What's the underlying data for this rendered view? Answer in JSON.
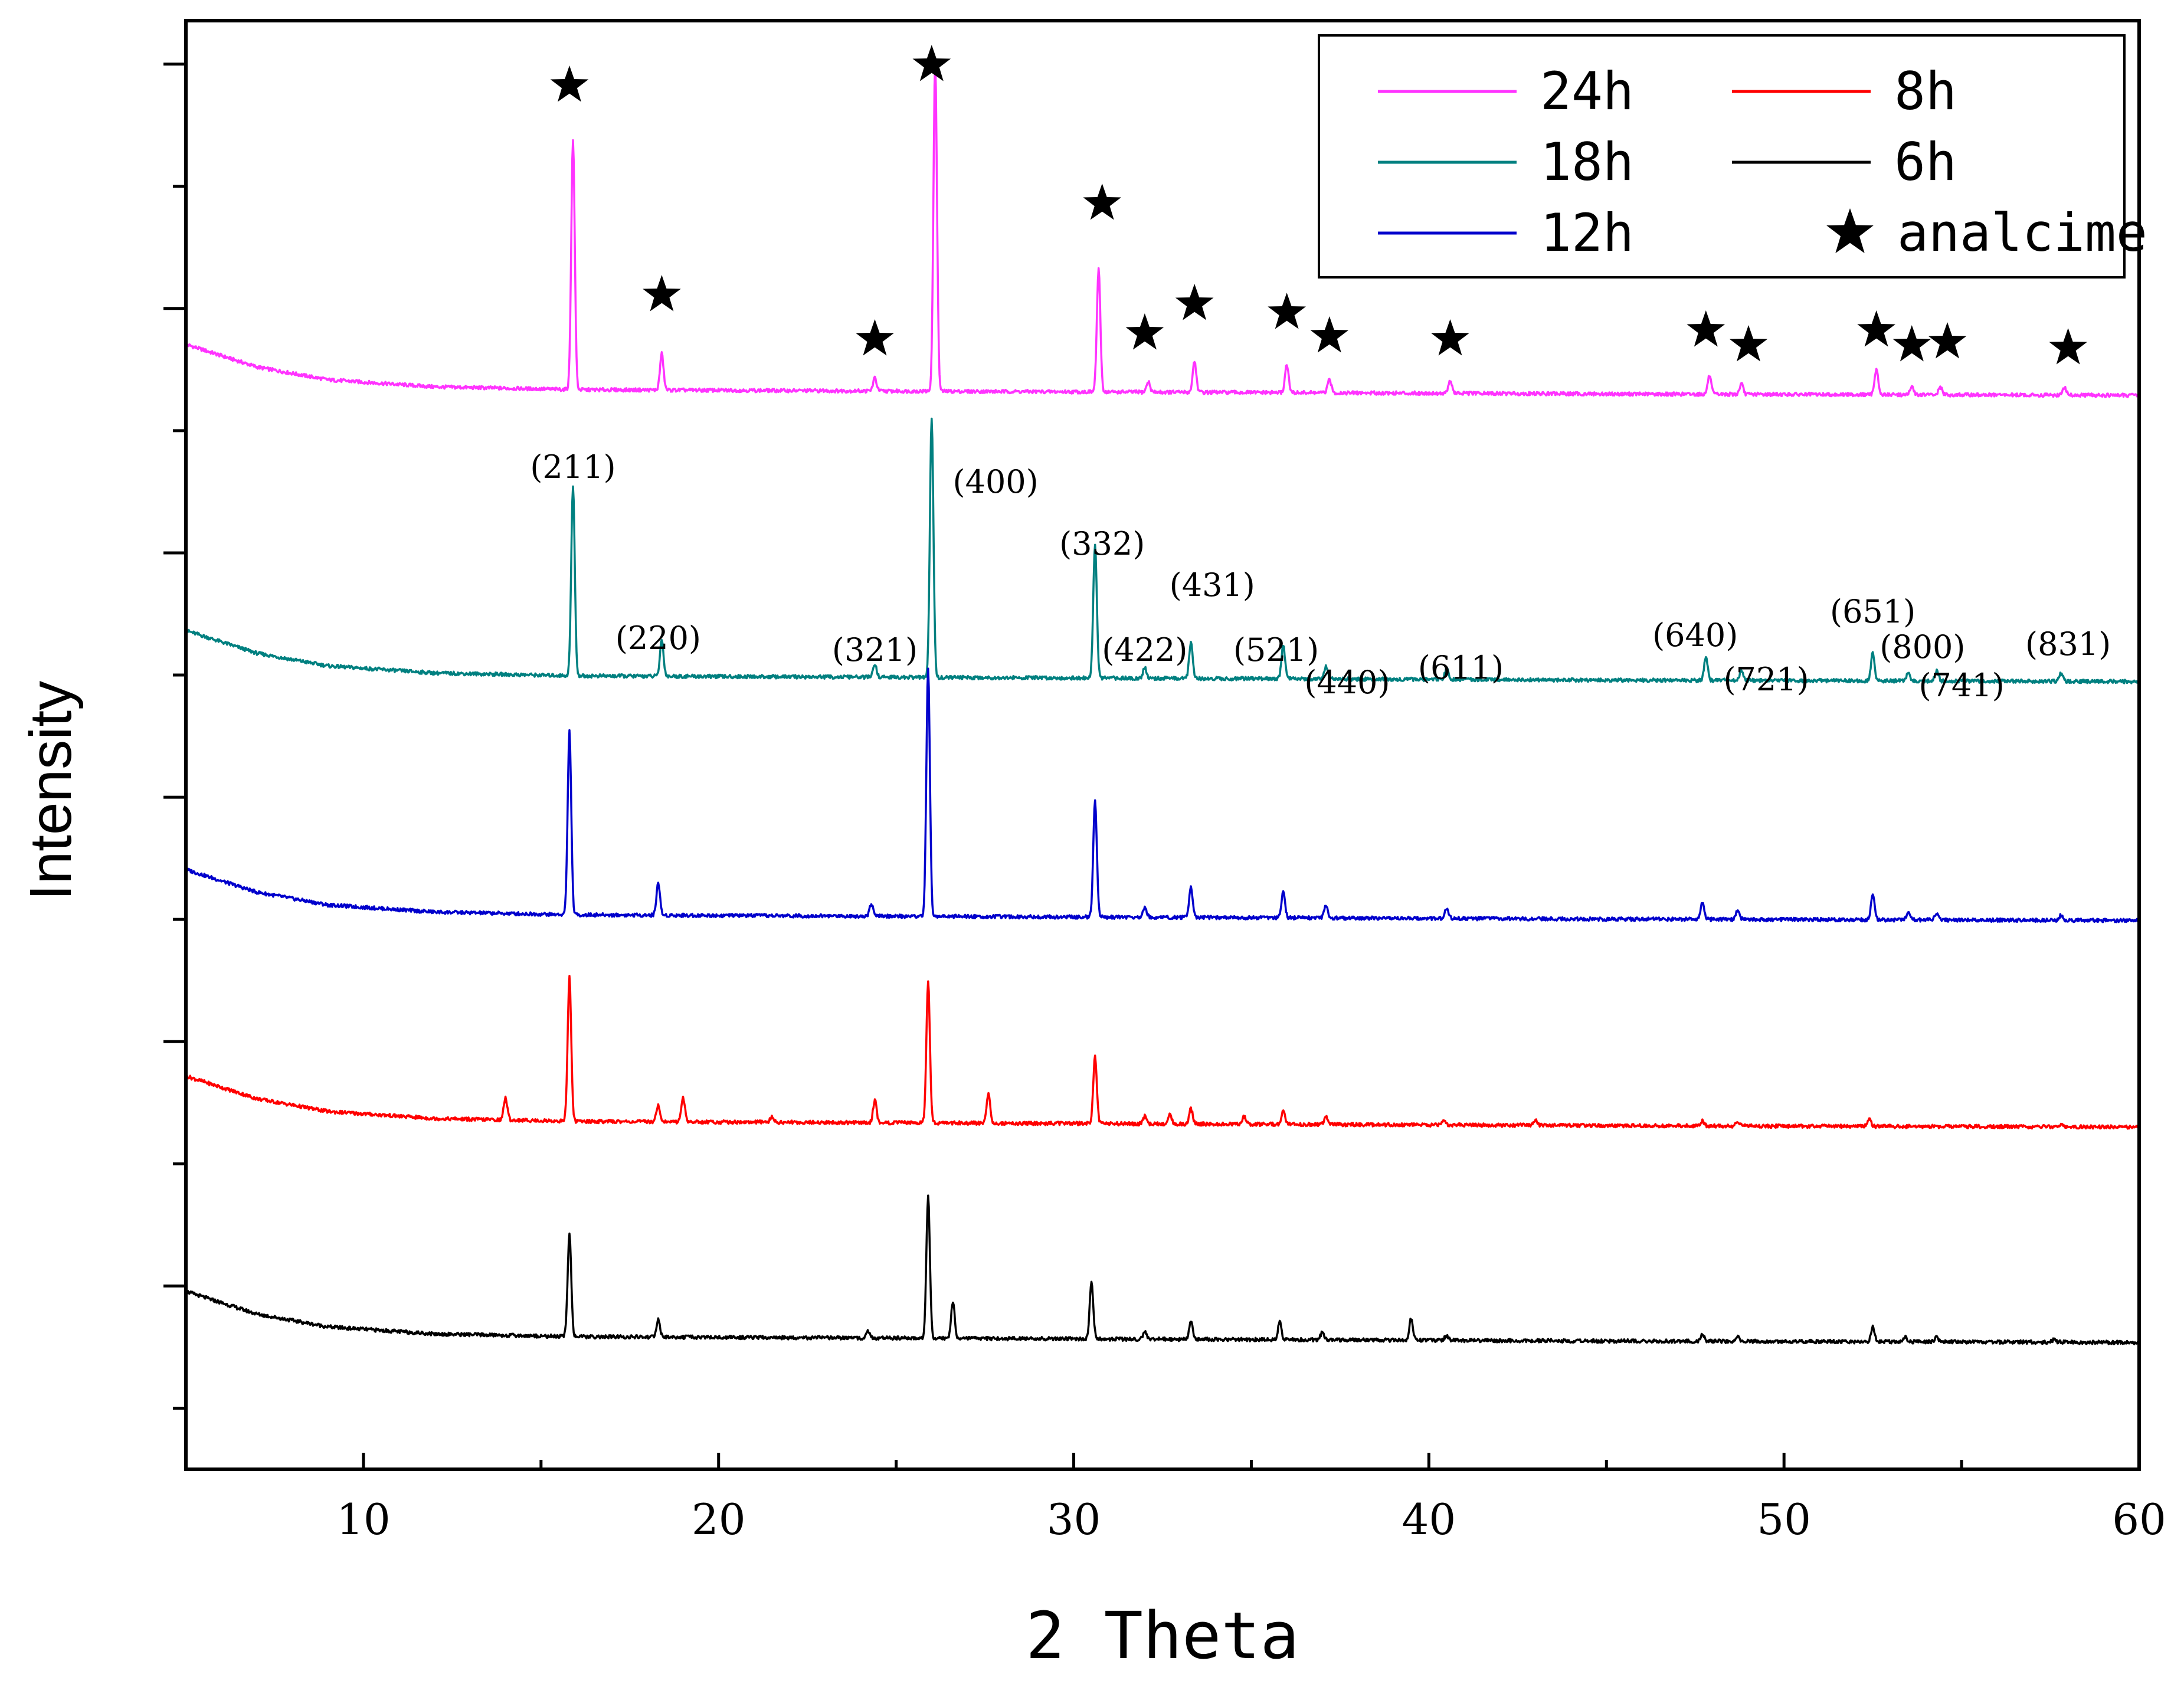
{
  "chart_data": {
    "type": "line",
    "title": "",
    "xlabel": "2 Theta",
    "ylabel": "Intensity",
    "xlim": [
      5,
      60
    ],
    "x_ticks": [
      10,
      20,
      30,
      40,
      50,
      60
    ],
    "x_tick_labels": [
      "10",
      "20",
      "30",
      "40",
      "50",
      "60"
    ],
    "y_ticks_count": 12,
    "grid": false,
    "legend_position": "top-right",
    "legend": [
      {
        "label": "24h",
        "color": "#ff33ff",
        "type": "line"
      },
      {
        "label": "8h",
        "color": "#ff0000",
        "type": "line"
      },
      {
        "label": "18h",
        "color": "#008080",
        "type": "line"
      },
      {
        "label": "6h",
        "color": "#000000",
        "type": "line"
      },
      {
        "label": "12h",
        "color": "#0000cc",
        "type": "line"
      },
      {
        "label": "analcime",
        "type": "star",
        "color": "#000000"
      }
    ],
    "series": [
      {
        "name": "24h",
        "color": "#ff33ff",
        "baseline": [
          [
            5,
            1.0
          ],
          [
            7,
            0.92
          ],
          [
            9,
            0.875
          ],
          [
            12,
            0.85
          ],
          [
            16,
            0.84
          ],
          [
            25,
            0.835
          ],
          [
            35,
            0.83
          ],
          [
            45,
            0.825
          ],
          [
            60,
            0.82
          ]
        ],
        "peaks": [
          [
            14.0,
            0.0
          ],
          [
            15.9,
            0.96
          ],
          [
            18.4,
            0.14
          ],
          [
            24.4,
            0.05
          ],
          [
            26.1,
            1.27
          ],
          [
            30.7,
            0.47
          ],
          [
            32.1,
            0.04
          ],
          [
            33.4,
            0.12
          ],
          [
            36.0,
            0.11
          ],
          [
            37.2,
            0.05
          ],
          [
            40.6,
            0.05
          ],
          [
            47.9,
            0.07
          ],
          [
            48.8,
            0.04
          ],
          [
            52.6,
            0.1
          ],
          [
            53.6,
            0.03
          ],
          [
            54.4,
            0.03
          ],
          [
            57.9,
            0.03
          ]
        ]
      },
      {
        "name": "18h",
        "color": "#008080",
        "baseline": [
          [
            5,
            1.0
          ],
          [
            7,
            0.92
          ],
          [
            9,
            0.875
          ],
          [
            12,
            0.85
          ],
          [
            16,
            0.84
          ],
          [
            25,
            0.835
          ],
          [
            35,
            0.83
          ],
          [
            45,
            0.825
          ],
          [
            60,
            0.82
          ]
        ],
        "peaks": [
          [
            15.9,
            0.73
          ],
          [
            18.4,
            0.14
          ],
          [
            24.4,
            0.05
          ],
          [
            26.0,
            1.0
          ],
          [
            30.6,
            0.51
          ],
          [
            32.0,
            0.04
          ],
          [
            33.3,
            0.14
          ],
          [
            35.9,
            0.13
          ],
          [
            37.1,
            0.05
          ],
          [
            40.5,
            0.04
          ],
          [
            47.8,
            0.09
          ],
          [
            48.8,
            0.04
          ],
          [
            52.5,
            0.11
          ],
          [
            53.5,
            0.03
          ],
          [
            54.3,
            0.04
          ],
          [
            57.8,
            0.03
          ]
        ]
      },
      {
        "name": "12h",
        "color": "#0000cc",
        "baseline": [
          [
            5,
            1.0
          ],
          [
            7,
            0.92
          ],
          [
            9,
            0.875
          ],
          [
            12,
            0.85
          ],
          [
            16,
            0.84
          ],
          [
            25,
            0.835
          ],
          [
            35,
            0.83
          ],
          [
            45,
            0.825
          ],
          [
            60,
            0.82
          ]
        ],
        "peaks": [
          [
            15.8,
            0.74
          ],
          [
            18.3,
            0.13
          ],
          [
            24.3,
            0.05
          ],
          [
            25.9,
            1.0
          ],
          [
            30.6,
            0.47
          ],
          [
            32.0,
            0.04
          ],
          [
            33.3,
            0.12
          ],
          [
            35.9,
            0.11
          ],
          [
            37.1,
            0.05
          ],
          [
            40.5,
            0.04
          ],
          [
            47.7,
            0.07
          ],
          [
            48.7,
            0.04
          ],
          [
            52.5,
            0.1
          ],
          [
            53.5,
            0.03
          ],
          [
            54.3,
            0.03
          ],
          [
            57.8,
            0.02
          ]
        ]
      },
      {
        "name": "8h",
        "color": "#ff0000",
        "baseline": [
          [
            5,
            1.0
          ],
          [
            7,
            0.92
          ],
          [
            9,
            0.875
          ],
          [
            12,
            0.85
          ],
          [
            16,
            0.84
          ],
          [
            25,
            0.835
          ],
          [
            35,
            0.83
          ],
          [
            45,
            0.825
          ],
          [
            60,
            0.82
          ]
        ],
        "peaks": [
          [
            14.0,
            0.09
          ],
          [
            15.8,
            0.58
          ],
          [
            18.3,
            0.07
          ],
          [
            19.0,
            0.1
          ],
          [
            21.5,
            0.02
          ],
          [
            24.4,
            0.09
          ],
          [
            25.9,
            0.57
          ],
          [
            27.6,
            0.12
          ],
          [
            30.6,
            0.27
          ],
          [
            32.0,
            0.03
          ],
          [
            32.7,
            0.04
          ],
          [
            33.3,
            0.06
          ],
          [
            34.8,
            0.03
          ],
          [
            35.9,
            0.05
          ],
          [
            37.1,
            0.03
          ],
          [
            40.4,
            0.02
          ],
          [
            43.0,
            0.02
          ],
          [
            47.7,
            0.02
          ],
          [
            48.7,
            0.02
          ],
          [
            52.4,
            0.03
          ],
          [
            57.8,
            0.01
          ]
        ]
      },
      {
        "name": "6h",
        "color": "#000000",
        "baseline": [
          [
            5,
            1.0
          ],
          [
            7,
            0.92
          ],
          [
            9,
            0.875
          ],
          [
            12,
            0.85
          ],
          [
            16,
            0.84
          ],
          [
            25,
            0.835
          ],
          [
            35,
            0.83
          ],
          [
            45,
            0.825
          ],
          [
            60,
            0.82
          ]
        ],
        "peaks": [
          [
            15.8,
            0.42
          ],
          [
            18.3,
            0.07
          ],
          [
            24.2,
            0.03
          ],
          [
            25.9,
            0.57
          ],
          [
            26.6,
            0.15
          ],
          [
            30.5,
            0.23
          ],
          [
            32.0,
            0.03
          ],
          [
            33.3,
            0.07
          ],
          [
            35.8,
            0.07
          ],
          [
            37.0,
            0.03
          ],
          [
            39.5,
            0.09
          ],
          [
            40.5,
            0.02
          ],
          [
            47.7,
            0.03
          ],
          [
            48.7,
            0.02
          ],
          [
            52.5,
            0.06
          ],
          [
            53.4,
            0.02
          ],
          [
            54.3,
            0.02
          ],
          [
            57.6,
            0.01
          ]
        ]
      }
    ],
    "analcime_markers": [
      15.8,
      18.4,
      24.4,
      26.0,
      30.8,
      32.0,
      33.4,
      36.0,
      37.2,
      40.6,
      47.8,
      49.0,
      52.6,
      53.6,
      54.6,
      58.0
    ],
    "annotations": [
      {
        "text": "(211)",
        "x": 15.9
      },
      {
        "text": "(400)",
        "x": 27.8
      },
      {
        "text": "(220)",
        "x": 18.3
      },
      {
        "text": "(332)",
        "x": 30.8
      },
      {
        "text": "(431)",
        "x": 33.9
      },
      {
        "text": "(321)",
        "x": 24.4
      },
      {
        "text": "(422)",
        "x": 32.0
      },
      {
        "text": "(521)",
        "x": 35.7
      },
      {
        "text": "(440)",
        "x": 37.7
      },
      {
        "text": "(611)",
        "x": 40.9
      },
      {
        "text": "(640)",
        "x": 47.5
      },
      {
        "text": "(721)",
        "x": 49.5
      },
      {
        "text": "(651)",
        "x": 52.5
      },
      {
        "text": "(800)",
        "x": 53.9
      },
      {
        "text": "(741)",
        "x": 55.0
      },
      {
        "text": "(831)",
        "x": 58.0
      }
    ]
  }
}
